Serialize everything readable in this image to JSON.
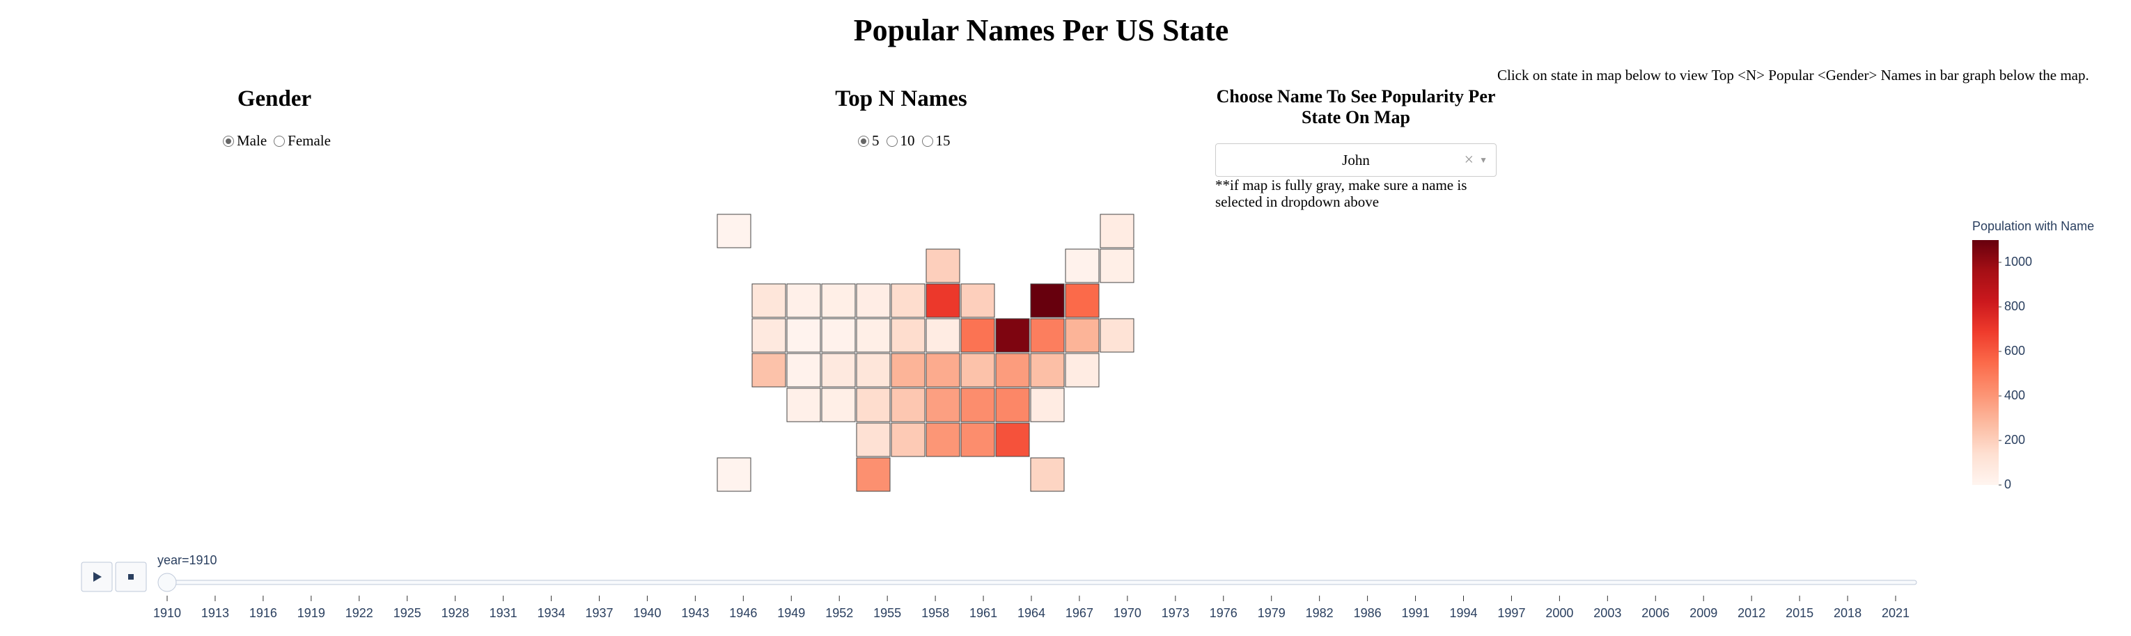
{
  "header": {
    "title": "Popular Names Per US State"
  },
  "controls": {
    "gender": {
      "label": "Gender",
      "options": [
        "Male",
        "Female"
      ],
      "selected": 0
    },
    "top_n": {
      "label": "Top N Names",
      "options": [
        5,
        10,
        15
      ],
      "selected": 0
    },
    "name_choice": {
      "label": "Choose Name To See Popularity Per State On Map",
      "value": "John",
      "note": "**if map is fully gray, make sure a name is selected in dropdown above"
    },
    "instruction": "Click on state in map below to view Top <N> Popular <Gender> Names in bar graph below the map."
  },
  "chart_data": {
    "type": "choropleth",
    "colorbar_title": "Population with Name",
    "values": [
      10,
      60,
      200,
      20,
      40,
      100,
      30,
      40,
      50,
      150,
      700,
      200,
      1100,
      550,
      80,
      10,
      20,
      40,
      150,
      60,
      520,
      1050,
      480,
      300,
      120,
      250,
      20,
      80,
      100,
      300,
      330,
      250,
      380,
      260,
      60,
      30,
      40,
      150,
      230,
      370,
      430,
      450,
      60,
      130,
      220,
      400,
      430,
      620,
      10,
      420,
      180
    ],
    "zlim": [
      0,
      1100
    ],
    "colorbar_ticks": [
      0,
      200,
      400,
      600,
      800,
      1000
    ],
    "colorscale": [
      "#fff5f0",
      "#fee0d2",
      "#fcbba1",
      "#fc9272",
      "#fb6a4a",
      "#ef3b2c",
      "#cb181d",
      "#a50f15",
      "#67000d"
    ],
    "border_color": "#444444"
  },
  "slider": {
    "label": "year=1910",
    "ticks": [
      1910,
      1913,
      1916,
      1919,
      1922,
      1925,
      1928,
      1931,
      1934,
      1937,
      1940,
      1943,
      1946,
      1949,
      1952,
      1955,
      1958,
      1961,
      1964,
      1967,
      1970,
      1973,
      1976,
      1979,
      1982,
      1986,
      1991,
      1994,
      1997,
      2000,
      2003,
      2006,
      2009,
      2012,
      2015,
      2018,
      2021
    ]
  }
}
